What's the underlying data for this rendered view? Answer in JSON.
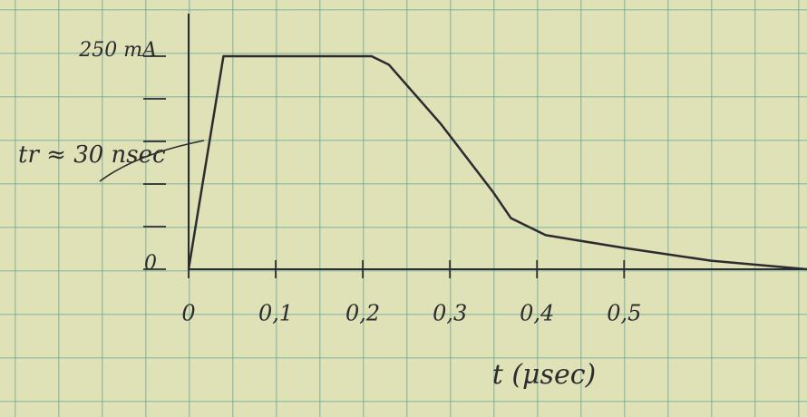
{
  "chart_data": {
    "type": "line",
    "annotation": "tr ≈ 30 nsec",
    "xlabel": "t (μsec)",
    "x": [
      0,
      0.04,
      0.21,
      0.23,
      0.29,
      0.35,
      0.37,
      0.41,
      0.5,
      0.6,
      0.71
    ],
    "values": [
      0,
      250,
      250,
      240,
      170,
      90,
      60,
      40,
      25,
      10,
      0
    ],
    "color": "#2b2b30",
    "xlim": [
      0,
      0.71
    ],
    "ylim": [
      0,
      300
    ],
    "xticks": [
      0,
      {
        "value": 0.1,
        "label": "0,1"
      },
      {
        "value": 0.2,
        "label": "0,2"
      },
      {
        "value": 0.3,
        "label": "0,3"
      },
      {
        "value": 0.4,
        "label": "0,4"
      },
      {
        "value": 0.5,
        "label": "0,5"
      }
    ],
    "yticks": [
      0,
      {
        "value": 50,
        "label": null
      },
      {
        "value": 100,
        "label": null
      },
      {
        "value": 150,
        "label": null
      },
      {
        "value": 200,
        "label": null
      },
      {
        "value": 250,
        "label": "250 mA"
      }
    ]
  }
}
